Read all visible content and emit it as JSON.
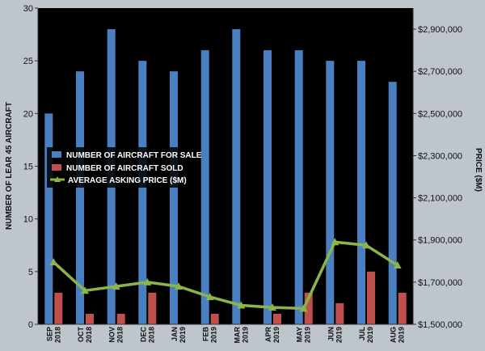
{
  "chart_data": {
    "type": "bar",
    "categories": [
      [
        "SEP",
        "2018"
      ],
      [
        "OCT",
        "2018"
      ],
      [
        "NOV",
        "2018"
      ],
      [
        "DEC",
        "2018"
      ],
      [
        "JAN",
        "2019"
      ],
      [
        "FEB",
        "2019"
      ],
      [
        "MAR",
        "2019"
      ],
      [
        "APR",
        "2019"
      ],
      [
        "MAY",
        "2019"
      ],
      [
        "JUN",
        "2019"
      ],
      [
        "JUL",
        "2019"
      ],
      [
        "AUG",
        "2019"
      ]
    ],
    "series": [
      {
        "name": "NUMBER OF AIRCRAFT FOR SALE",
        "type": "bar",
        "axis": "left",
        "color": "#4a7fc1",
        "values": [
          20,
          24,
          28,
          25,
          24,
          26,
          28,
          26,
          26,
          25,
          25,
          23
        ]
      },
      {
        "name": "NUMBER OF AIRCRAFT SOLD",
        "type": "bar",
        "axis": "left",
        "color": "#c0504d",
        "values": [
          3,
          1,
          1,
          3,
          0,
          1,
          0,
          1,
          3,
          2,
          5,
          3
        ]
      },
      {
        "name": "AVERAGE ASKING PRICE ($M)",
        "type": "line",
        "axis": "right",
        "color": "#8bb44a",
        "values": [
          1795000,
          1660000,
          1680000,
          1700000,
          1680000,
          1630000,
          1590000,
          1580000,
          1575000,
          1890000,
          1875000,
          1780000
        ]
      }
    ],
    "ylabel": "NUMBER OF LEAR 45 AIRCRAFT",
    "y2label": "PRICE ($M)",
    "ylim": [
      0,
      30
    ],
    "yticks": [
      0,
      5,
      10,
      15,
      20,
      25,
      30
    ],
    "y2lim": [
      1500000,
      3000000
    ],
    "y2ticks": [
      {
        "value": 1500000,
        "label": "$1,500,000"
      },
      {
        "value": 1700000,
        "label": "$1,700,000"
      },
      {
        "value": 1900000,
        "label": "$1,900,000"
      },
      {
        "value": 2100000,
        "label": "$2,100,000"
      },
      {
        "value": 2300000,
        "label": "$2,300,000"
      },
      {
        "value": 2500000,
        "label": "$2,500,000"
      },
      {
        "value": 2700000,
        "label": "$2,700,000"
      },
      {
        "value": 2900000,
        "label": "$2,900,000"
      }
    ],
    "plot_background": "#000000",
    "legend_position": "center-left",
    "grid": false
  }
}
